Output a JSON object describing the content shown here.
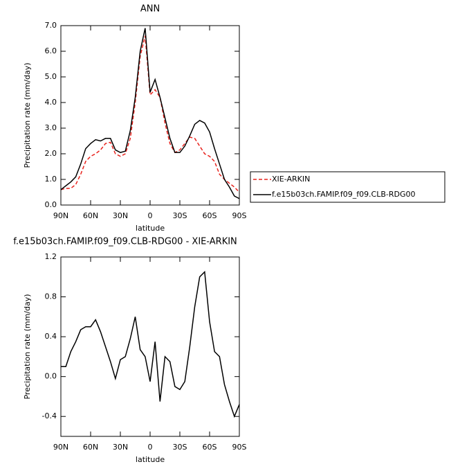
{
  "chart_data": [
    {
      "type": "line",
      "title": "ANN",
      "x_label": "latitude",
      "y_label": "Precipitation rate (mm/day)",
      "x": [
        90,
        85,
        80,
        75,
        70,
        65,
        60,
        55,
        50,
        45,
        40,
        35,
        30,
        25,
        20,
        15,
        10,
        5,
        0,
        -5,
        -10,
        -15,
        -20,
        -25,
        -30,
        -35,
        -40,
        -45,
        -50,
        -55,
        -60,
        -65,
        -70,
        -75,
        -80,
        -85,
        -90
      ],
      "xlim": [
        90,
        -90
      ],
      "xticks": [
        {
          "value": 90,
          "label": "90N"
        },
        {
          "value": 60,
          "label": "60N"
        },
        {
          "value": 30,
          "label": "30N"
        },
        0,
        {
          "value": -30,
          "label": "30S"
        },
        {
          "value": -60,
          "label": "60S"
        },
        {
          "value": -90,
          "label": "90S"
        }
      ],
      "ylim": [
        0,
        7
      ],
      "yticks": [
        {
          "value": 0,
          "label": "0.0"
        },
        {
          "value": 1,
          "label": "1.0"
        },
        {
          "value": 2,
          "label": "2.0"
        },
        {
          "value": 3,
          "label": "3.0"
        },
        {
          "value": 4,
          "label": "4.0"
        },
        {
          "value": 5,
          "label": "5.0"
        },
        {
          "value": 6,
          "label": "6.0"
        },
        {
          "value": 7,
          "label": "7.0"
        }
      ],
      "legend": "right",
      "series": [
        {
          "name": "XIE-ARKIN",
          "color": "#e8221c",
          "style": "dashed",
          "values": [
            0.6,
            0.65,
            0.65,
            0.8,
            1.2,
            1.7,
            1.9,
            2.0,
            2.15,
            2.4,
            2.45,
            2.0,
            1.9,
            2.0,
            2.6,
            4.0,
            5.8,
            6.6,
            4.3,
            4.5,
            4.2,
            3.2,
            2.4,
            2.05,
            2.15,
            2.4,
            2.65,
            2.6,
            2.3,
            2.0,
            1.9,
            1.7,
            1.2,
            1.0,
            0.85,
            0.7,
            0.5
          ]
        },
        {
          "name": "f.e15b03ch.FAMIP.f09_f09.CLB-RDG00",
          "color": "#000000",
          "style": "solid",
          "values": [
            0.6,
            0.75,
            0.9,
            1.1,
            1.6,
            2.2,
            2.4,
            2.55,
            2.5,
            2.6,
            2.6,
            2.15,
            2.05,
            2.1,
            2.9,
            4.2,
            6.0,
            6.9,
            4.4,
            4.9,
            4.2,
            3.4,
            2.6,
            2.05,
            2.05,
            2.3,
            2.7,
            3.15,
            3.3,
            3.2,
            2.85,
            2.2,
            1.6,
            1.0,
            0.7,
            0.35,
            0.25
          ]
        }
      ]
    },
    {
      "type": "line",
      "title": "f.e15b03ch.FAMIP.f09_f09.CLB-RDG00 - XIE-ARKIN",
      "x_label": "latitude",
      "y_label": "Precipitation rate (mm/day)",
      "x": [
        90,
        85,
        80,
        75,
        70,
        65,
        60,
        55,
        50,
        45,
        40,
        35,
        30,
        25,
        20,
        15,
        10,
        5,
        0,
        -5,
        -10,
        -15,
        -20,
        -25,
        -30,
        -35,
        -40,
        -45,
        -50,
        -55,
        -60,
        -65,
        -70,
        -75,
        -80,
        -85,
        -90
      ],
      "xlim": [
        90,
        -90
      ],
      "xticks": [
        {
          "value": 90,
          "label": "90N"
        },
        {
          "value": 60,
          "label": "60N"
        },
        {
          "value": 30,
          "label": "30N"
        },
        0,
        {
          "value": -30,
          "label": "30S"
        },
        {
          "value": -60,
          "label": "60S"
        },
        {
          "value": -90,
          "label": "90S"
        }
      ],
      "ylim": [
        -0.6,
        1.2
      ],
      "yticks": [
        -0.4,
        {
          "value": 0,
          "label": "0.0"
        },
        0.4,
        0.8,
        1.2
      ],
      "series": [
        {
          "color": "#000000",
          "style": "solid",
          "values": [
            0.1,
            0.1,
            0.25,
            0.35,
            0.47,
            0.5,
            0.5,
            0.57,
            0.45,
            0.3,
            0.15,
            -0.02,
            0.17,
            0.2,
            0.38,
            0.6,
            0.27,
            0.2,
            -0.05,
            0.35,
            -0.25,
            0.2,
            0.15,
            -0.1,
            -0.13,
            -0.05,
            0.3,
            0.7,
            1.0,
            1.05,
            0.55,
            0.25,
            0.2,
            -0.08,
            -0.25,
            -0.4,
            -0.28
          ]
        }
      ]
    }
  ]
}
